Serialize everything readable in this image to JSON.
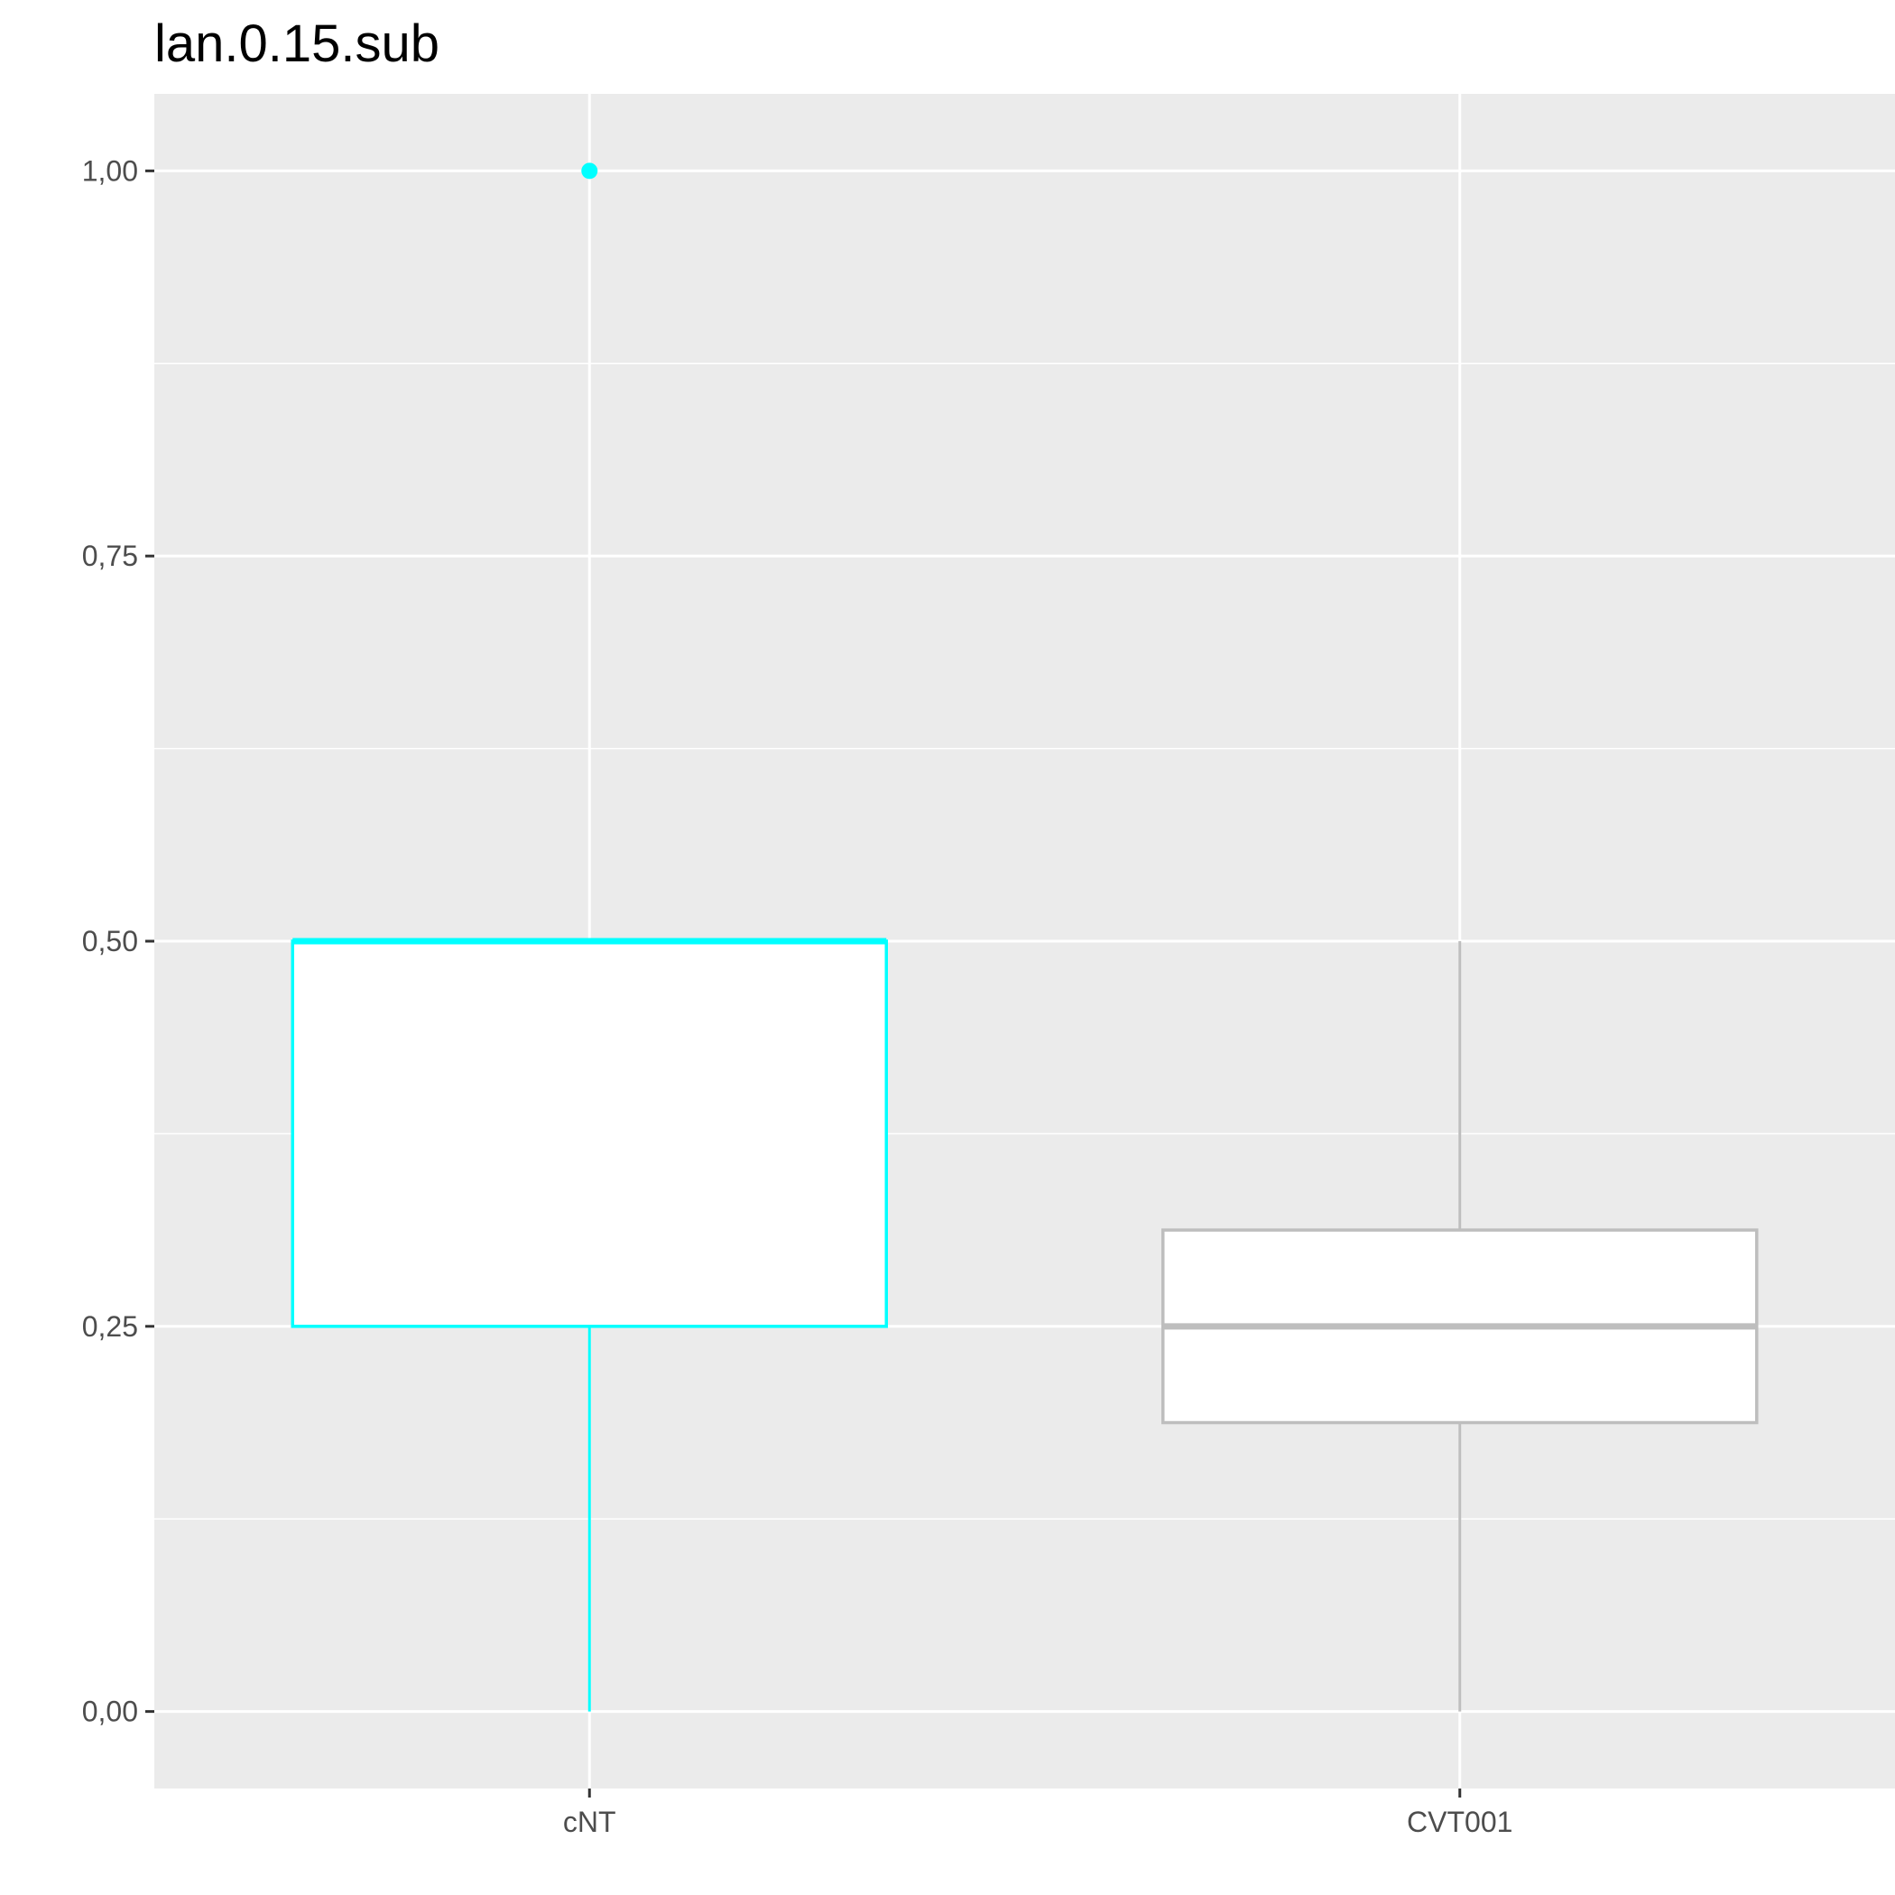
{
  "chart_data": {
    "type": "boxplot",
    "title": "lan.0.15.sub",
    "xlabel": "",
    "ylabel": "",
    "categories": [
      "cNT",
      "CVT001"
    ],
    "ylim": [
      -0.05,
      1.05
    ],
    "y_ticks": [
      0,
      0.25,
      0.5,
      0.75,
      1.0
    ],
    "y_tick_labels": [
      "0,00",
      "0,25",
      "0,50",
      "0,75",
      "1,00"
    ],
    "y_minor_ticks": [
      0.125,
      0.375,
      0.625,
      0.875
    ],
    "grid": true,
    "legend": "none",
    "boxes": [
      {
        "category": "cNT",
        "color": "#00FFFF",
        "whisker_low": 0.0,
        "q1": 0.25,
        "median": 0.5,
        "q3": 0.5,
        "whisker_high": 0.5,
        "outliers": [
          1.0
        ]
      },
      {
        "category": "CVT001",
        "color": "#BEBEBE",
        "whisker_low": 0.0,
        "q1": 0.1875,
        "median": 0.25,
        "q3": 0.3125,
        "whisker_high": 0.5,
        "outliers": []
      }
    ]
  },
  "colors": {
    "panel_background": "#EBEBEB",
    "grid": "#FFFFFF",
    "box_fill": "#FFFFFF",
    "tick": "#333333"
  }
}
